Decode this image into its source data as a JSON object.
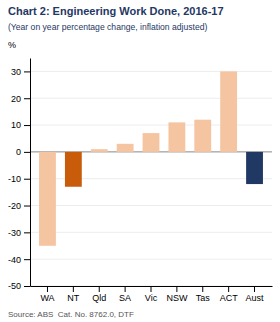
{
  "chart_data": {
    "type": "bar",
    "title": "Chart 2: Engineering Work Done, 2016-17",
    "subtitle": "(Year on year percentage change, inflation adjusted)",
    "y_label": "%",
    "source": "Source: ABS  Cat. No. 8762.0, DTF",
    "categories": [
      "WA",
      "NT",
      "Qld",
      "SA",
      "Vic",
      "NSW",
      "Tas",
      "ACT",
      "Aust"
    ],
    "values": [
      -35,
      -13,
      1,
      3,
      7,
      11,
      12,
      30,
      -12
    ],
    "colors": [
      "#f5c4a0",
      "#c95c0a",
      "#f5c4a0",
      "#f5c4a0",
      "#f5c4a0",
      "#f5c4a0",
      "#f5c4a0",
      "#f5c4a0",
      "#1f3864"
    ],
    "ylim": [
      -50,
      35
    ],
    "yticks": [
      -50,
      -40,
      -30,
      -20,
      -10,
      0,
      10,
      20,
      30
    ],
    "grid": true
  }
}
